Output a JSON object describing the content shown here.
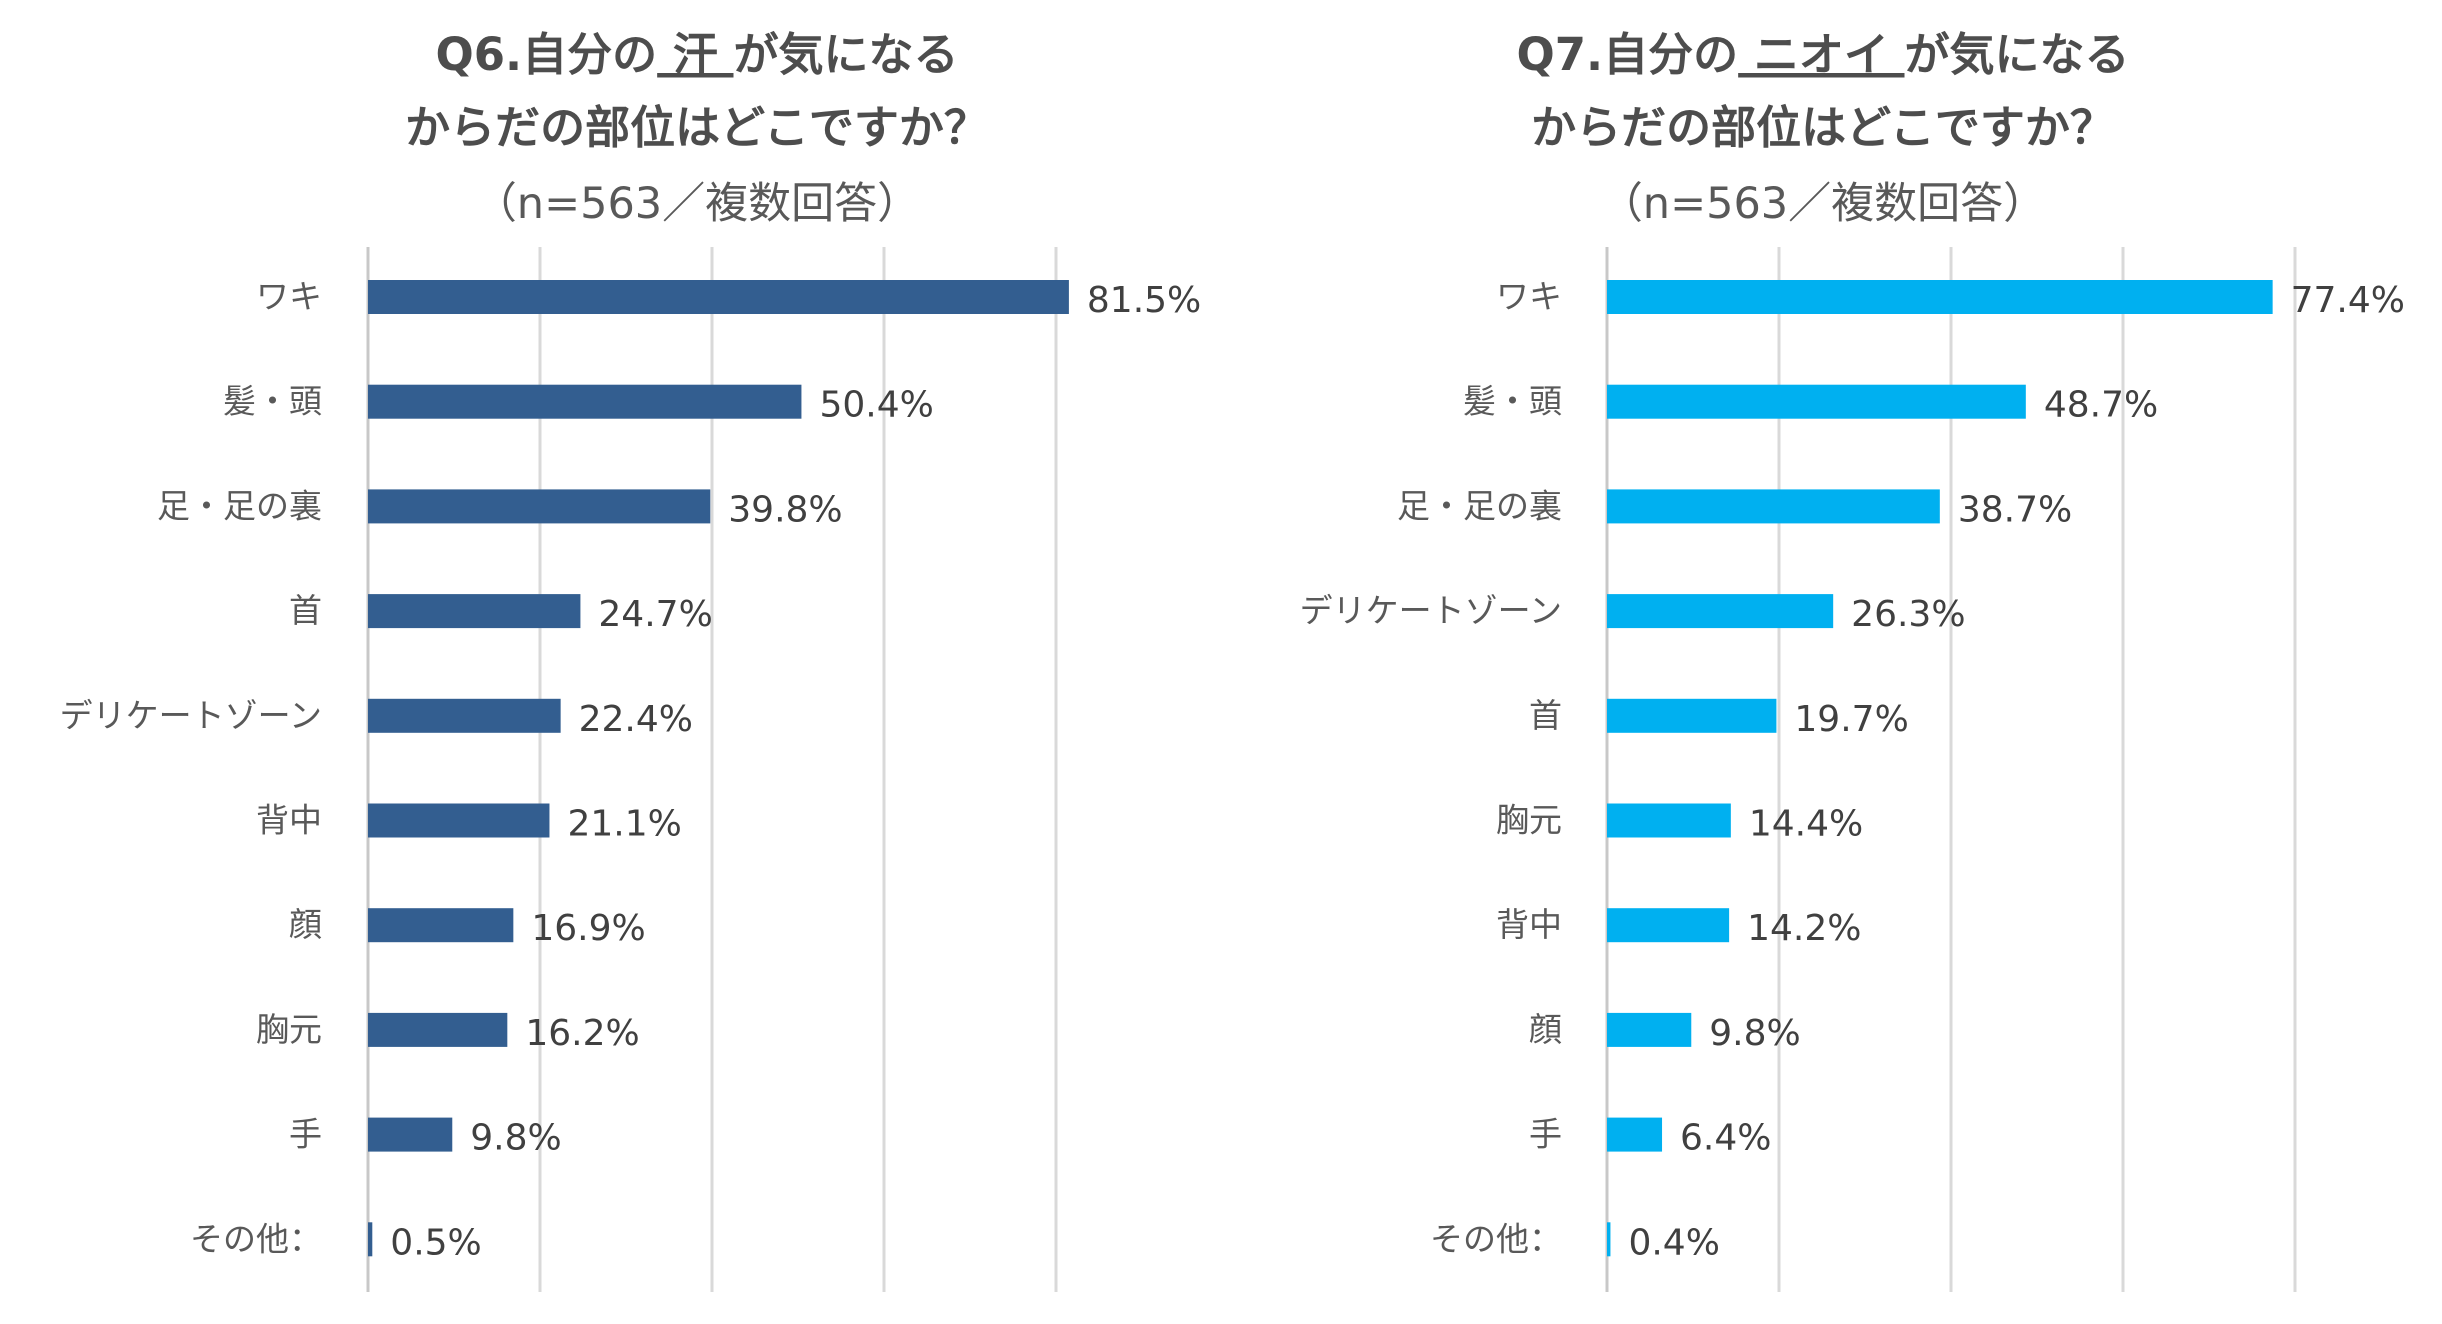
{
  "chart_data": [
    {
      "type": "bar",
      "orientation": "horizontal",
      "title": {
        "prefix": "Q6.自分の",
        "emphasis": " 汗 ",
        "suffix": "が気になる",
        "line2": "からだの部位はどこですか？",
        "line3": "（n=563／複数回答）"
      },
      "categories": [
        "ワキ",
        "髪・頭",
        "足・足の裏",
        "首",
        "デリケートゾーン",
        "背中",
        "顔",
        "胸元",
        "手",
        "その他："
      ],
      "values": [
        81.5,
        50.4,
        39.8,
        24.7,
        22.4,
        21.1,
        16.9,
        16.2,
        9.8,
        0.5
      ],
      "labels": [
        "81.5%",
        "50.4%",
        "39.8%",
        "24.7%",
        "22.4%",
        "21.1%",
        "16.9%",
        "16.2%",
        "9.8%",
        "0.5%"
      ],
      "xlim": [
        0,
        100
      ],
      "grid_values": [
        0,
        20,
        40,
        60,
        80
      ],
      "grid": true,
      "color": "#335e90"
    },
    {
      "type": "bar",
      "orientation": "horizontal",
      "title": {
        "prefix": "Q7.自分の",
        "emphasis": " ニオイ ",
        "suffix": "が気になる",
        "line2": "からだの部位はどこですか？",
        "line3": "（n=563／複数回答）"
      },
      "categories": [
        "ワキ",
        "髪・頭",
        "足・足の裏",
        "デリケートゾーン",
        "首",
        "胸元",
        "背中",
        "顔",
        "手",
        "その他："
      ],
      "values": [
        77.4,
        48.7,
        38.7,
        26.3,
        19.7,
        14.4,
        14.2,
        9.8,
        6.4,
        0.4
      ],
      "labels": [
        "77.4%",
        "48.7%",
        "38.7%",
        "26.3%",
        "19.7%",
        "14.4%",
        "14.2%",
        "9.8%",
        "6.4%",
        "0.4%"
      ],
      "xlim": [
        0,
        100
      ],
      "grid_values": [
        0,
        20,
        40,
        60,
        80
      ],
      "grid": true,
      "color": "#00b0f0"
    }
  ]
}
